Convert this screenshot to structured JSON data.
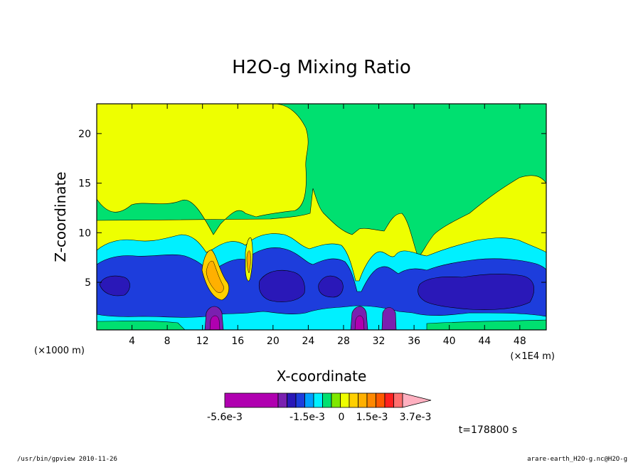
{
  "chart_data": {
    "type": "heatmap",
    "title": "H2O-g Mixing Ratio",
    "xlabel": "X-coordinate",
    "ylabel": "Z-coordinate",
    "x_unit_left": "(×1000 m)",
    "x_unit_right": "(×1E4 m)",
    "xlim": [
      0,
      51
    ],
    "ylim": [
      0.2,
      23
    ],
    "x_ticks": [
      4,
      8,
      12,
      16,
      20,
      24,
      28,
      32,
      36,
      40,
      44,
      48
    ],
    "y_ticks": [
      5,
      10,
      15,
      20
    ],
    "grid": false,
    "colorbar": {
      "colors": [
        "#b000b0",
        "#b000b0",
        "#7a20b0",
        "#2a18b8",
        "#1d3ddc",
        "#00a0ff",
        "#00f0ff",
        "#00e070",
        "#7fe800",
        "#eeff00",
        "#ffd000",
        "#ffb000",
        "#ff8800",
        "#ff5a00",
        "#ff2020",
        "#ff7070",
        "#ffb0c0"
      ],
      "labels": [
        "-5.6e-3",
        "-1.5e-3",
        "0",
        "1.5e-3",
        "3.7e-3"
      ],
      "label_colors": [
        "#000000",
        "#000000",
        "#000000",
        "#000000",
        "#000000"
      ]
    },
    "time_label": "t=178800 s",
    "fields": {
      "yellow": "#eeff00",
      "green": "#00e070",
      "cyan": "#00f0ff",
      "blue": "#1d3ddc",
      "navy": "#2a18b8",
      "purple": "#7a20b0",
      "magenta": "#b000b0",
      "orange": "#ffb000",
      "gold": "#ffd000"
    }
  },
  "footer": {
    "left": "/usr/bin/gpview  2010-11-26",
    "right": "arare-earth_H2O-g.nc@H2O-g"
  }
}
